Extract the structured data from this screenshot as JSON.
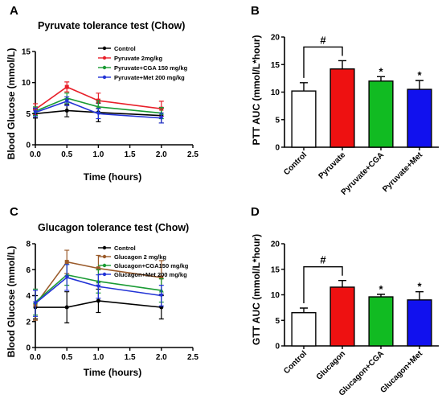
{
  "panels": {
    "a": "A",
    "b": "B",
    "c": "C",
    "d": "D"
  },
  "chart_data": [
    {
      "type": "line",
      "title": "Pyruvate  tolerance  test (Chow)",
      "xlabel": "Time (hours)",
      "ylabel": "Blood Glucose (mmol/L)",
      "xlim": [
        0,
        2.5
      ],
      "ylim": [
        0,
        15
      ],
      "xticks": [
        "0.0",
        "0.5",
        "1.0",
        "1.5",
        "2.0",
        "2.5"
      ],
      "yticks": [
        "0",
        "5",
        "10",
        "15"
      ],
      "x": [
        0,
        0.5,
        1.0,
        2.0
      ],
      "series": [
        {
          "name": "Control",
          "color": "#000000",
          "values": [
            5.0,
            5.5,
            5.2,
            4.7
          ],
          "errors": [
            0.7,
            1.0,
            1.5,
            1.2
          ]
        },
        {
          "name": "Pyruvate 2mg/kg",
          "color": "#e8202a",
          "values": [
            5.7,
            9.3,
            7.1,
            5.8
          ],
          "errors": [
            0.9,
            0.8,
            1.2,
            1.2
          ]
        },
        {
          "name": "Pyruvate+CGA 150 mg/kg",
          "color": "#1a9b34",
          "values": [
            5.4,
            7.5,
            6.1,
            5.1
          ],
          "errors": [
            0.7,
            0.8,
            1.0,
            0.9
          ]
        },
        {
          "name": "Pyruvate+Met 200 mg/kg",
          "color": "#2233d6",
          "values": [
            5.2,
            7.0,
            5.0,
            4.3
          ],
          "errors": [
            0.7,
            0.7,
            0.8,
            0.8
          ]
        }
      ]
    },
    {
      "type": "bar",
      "ylabel": "PTT AUC (mmol/L*hour)",
      "ylim": [
        0,
        20
      ],
      "yticks": [
        "0",
        "5",
        "10",
        "15",
        "20"
      ],
      "categories": [
        "Control",
        "Pyruvate",
        "Pyruvate+CGA",
        "Pyruvate+Met"
      ],
      "values": [
        10.2,
        14.2,
        12.0,
        10.5
      ],
      "errors": [
        1.5,
        1.5,
        0.8,
        1.6
      ],
      "colors": [
        "#ffffff",
        "#ee1111",
        "#11bb22",
        "#1111ee"
      ],
      "annotations": [
        "",
        "",
        "*",
        "*"
      ],
      "bracket_label": "#"
    },
    {
      "type": "line",
      "title": "Glucagon  tolerance  test (Chow)",
      "xlabel": "Time (hours)",
      "ylabel": "Blood Glucose (mmol/L)",
      "xlim": [
        0,
        2.5
      ],
      "ylim": [
        0,
        8
      ],
      "xticks": [
        "0.0",
        "0.5",
        "1.0",
        "1.5",
        "2.0",
        "2.5"
      ],
      "yticks": [
        "0",
        "2",
        "4",
        "6",
        "8"
      ],
      "x": [
        0,
        0.5,
        1.0,
        2.0
      ],
      "series": [
        {
          "name": "Control",
          "color": "#000000",
          "values": [
            3.1,
            3.1,
            3.6,
            3.1
          ],
          "errors": [
            0.9,
            1.2,
            0.9,
            0.9
          ]
        },
        {
          "name": "Glucagon 2 mg/kg",
          "color": "#9a5a2a",
          "values": [
            3.3,
            6.6,
            6.1,
            5.4
          ],
          "errors": [
            1.2,
            0.9,
            1.0,
            1.3
          ]
        },
        {
          "name": "Glucagon+CGA150 mg/kg",
          "color": "#1a9b34",
          "values": [
            3.5,
            5.6,
            5.1,
            4.4
          ],
          "errors": [
            1.0,
            0.8,
            0.9,
            0.9
          ]
        },
        {
          "name": "Glucagon+Met 200 mg/kg",
          "color": "#2233d6",
          "values": [
            3.4,
            5.4,
            4.7,
            4.0
          ],
          "errors": [
            1.0,
            1.0,
            0.9,
            0.8
          ]
        }
      ]
    },
    {
      "type": "bar",
      "ylabel": "GTT AUC (mmol/L*hour)",
      "ylim": [
        0,
        20
      ],
      "yticks": [
        "0",
        "5",
        "10",
        "15",
        "20"
      ],
      "categories": [
        "Control",
        "Glucagon",
        "Glucagon+CGA",
        "Glucagon+Met"
      ],
      "values": [
        6.5,
        11.5,
        9.6,
        9.0
      ],
      "errors": [
        0.9,
        1.3,
        0.5,
        1.6
      ],
      "colors": [
        "#ffffff",
        "#ee1111",
        "#11bb22",
        "#1111ee"
      ],
      "annotations": [
        "",
        "",
        "*",
        "*"
      ],
      "bracket_label": "#"
    }
  ]
}
